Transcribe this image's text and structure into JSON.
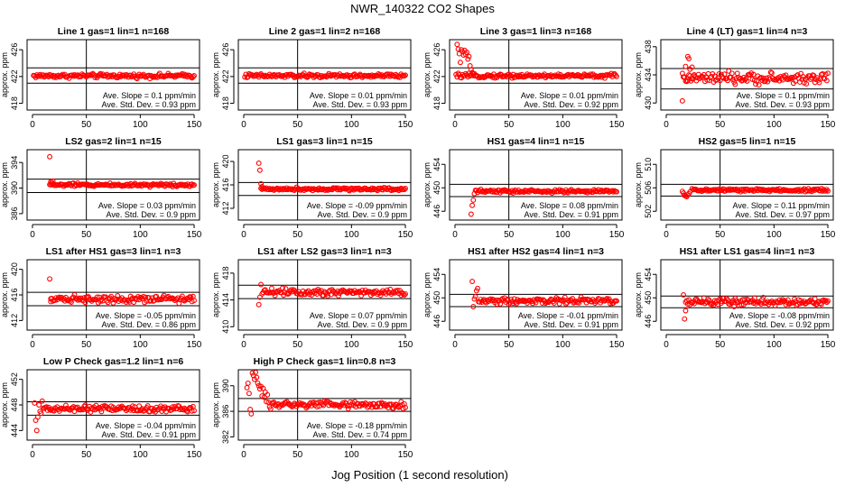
{
  "figure": {
    "title": "NWR_140322  CO2 Shapes",
    "xlabel": "Jog Position (1 second resolution)"
  },
  "chart_data": [
    {
      "type": "scatter",
      "title": "Line 1 gas=1 lin=1 n=168",
      "ylabel": "approx. ppm",
      "xlim": [
        -5,
        155
      ],
      "ylim": [
        417,
        427.5
      ],
      "xticks": [
        0,
        50,
        100,
        150
      ],
      "yticks": [
        418,
        422,
        426
      ],
      "vline": 50,
      "hlines": [
        423.3,
        421.0
      ],
      "baseline": 422.1,
      "noise": 0.22,
      "startX": 1,
      "spikes": [],
      "annotations": [
        "Ave. Slope = 0.1  ppm/min",
        "Ave. Std. Dev. = 0.93  ppm"
      ]
    },
    {
      "type": "scatter",
      "title": "Line 2 gas=1 lin=2 n=168",
      "ylabel": "approx. ppm",
      "xlim": [
        -5,
        155
      ],
      "ylim": [
        417,
        427.5
      ],
      "xticks": [
        0,
        50,
        100,
        150
      ],
      "yticks": [
        418,
        422,
        426
      ],
      "vline": 50,
      "hlines": [
        423.3,
        421.0
      ],
      "baseline": 422.1,
      "noise": 0.22,
      "startX": 1,
      "spikes": [],
      "annotations": [
        "Ave. Slope = 0.01  ppm/min",
        "Ave. Std. Dev. = 0.93  ppm"
      ]
    },
    {
      "type": "scatter",
      "title": "Line 3 gas=1 lin=3 n=168",
      "ylabel": "approx. ppm",
      "xlim": [
        -5,
        155
      ],
      "ylim": [
        417,
        427.5
      ],
      "xticks": [
        0,
        50,
        100,
        150
      ],
      "yticks": [
        418,
        422,
        426
      ],
      "vline": 50,
      "hlines": [
        423.3,
        421.0
      ],
      "baseline": 422.1,
      "noise": 0.22,
      "startX": 1,
      "spikes": [
        [
          2,
          426.8
        ],
        [
          3,
          426.1
        ],
        [
          4,
          425.4
        ],
        [
          5,
          424.1
        ],
        [
          6,
          426.0
        ],
        [
          7,
          425.7
        ],
        [
          8,
          425.2
        ],
        [
          9,
          425.9
        ],
        [
          10,
          425.3
        ],
        [
          11,
          425.6
        ],
        [
          12,
          424.6
        ],
        [
          13,
          425.0
        ],
        [
          14,
          423.6
        ],
        [
          15,
          423.0
        ],
        [
          16,
          422.6
        ],
        [
          17,
          422.4
        ]
      ],
      "annotations": [
        "Ave. Slope = 0.01  ppm/min",
        "Ave. Std. Dev. = 0.92  ppm"
      ]
    },
    {
      "type": "scatter",
      "title": "Line 4 (LT) gas=1 lin=4 n=3",
      "ylabel": "approx. ppm",
      "xlim": [
        -5,
        155
      ],
      "ylim": [
        429,
        439
      ],
      "xticks": [
        0,
        50,
        100,
        150
      ],
      "yticks": [
        430,
        434,
        438
      ],
      "vline": 50,
      "hlines": [
        434.9,
        432.0
      ],
      "baseline": 433.5,
      "noise": 0.55,
      "startX": 15,
      "spikes": [
        [
          15,
          430.3
        ],
        [
          16,
          433.7
        ],
        [
          18,
          435.2
        ],
        [
          20,
          436.6
        ],
        [
          21,
          436.3
        ],
        [
          22,
          434.8
        ],
        [
          24,
          435.1
        ],
        [
          26,
          434.0
        ]
      ],
      "annotations": [
        "Ave. Slope = 0.1  ppm/min",
        "Ave. Std. Dev. = 0.93  ppm"
      ]
    },
    {
      "type": "scatter",
      "title": "LS2 gas=2 lin=1 n=15",
      "ylabel": "approx. ppm",
      "xlim": [
        -5,
        155
      ],
      "ylim": [
        385,
        396
      ],
      "xticks": [
        0,
        50,
        100,
        150
      ],
      "yticks": [
        386,
        390,
        394
      ],
      "vline": 50,
      "hlines": [
        391.4,
        389.3
      ],
      "baseline": 390.5,
      "noise": 0.18,
      "startX": 16,
      "spikes": [
        [
          16,
          394.9
        ],
        [
          17,
          391.0
        ],
        [
          18,
          390.9
        ],
        [
          19,
          391.1
        ]
      ],
      "annotations": [
        "Ave. Slope = 0.03  ppm/min",
        "Ave. Std. Dev. = 0.9  ppm"
      ]
    },
    {
      "type": "scatter",
      "title": "LS1 gas=3 lin=1 n=15",
      "ylabel": "approx. ppm",
      "xlim": [
        -5,
        155
      ],
      "ylim": [
        410,
        422
      ],
      "xticks": [
        0,
        50,
        100,
        150
      ],
      "yticks": [
        412,
        416,
        420
      ],
      "vline": 50,
      "hlines": [
        416.4,
        414.2
      ],
      "baseline": 415.3,
      "noise": 0.18,
      "startX": 16,
      "spikes": [
        [
          14,
          419.7
        ],
        [
          15,
          418.5
        ],
        [
          16,
          416.2
        ],
        [
          17,
          415.7
        ]
      ],
      "annotations": [
        "Ave. Slope = -0.09  ppm/min",
        "Ave. Std. Dev. = 0.9  ppm"
      ]
    },
    {
      "type": "scatter",
      "title": "HS1 gas=4 lin=1 n=15",
      "ylabel": "approx. ppm",
      "xlim": [
        -5,
        155
      ],
      "ylim": [
        444.5,
        456.5
      ],
      "xticks": [
        0,
        50,
        100,
        150
      ],
      "yticks": [
        446,
        450,
        454
      ],
      "vline": 50,
      "hlines": [
        450.6,
        448.5
      ],
      "baseline": 449.4,
      "noise": 0.2,
      "startX": 19,
      "spikes": [
        [
          15,
          445.5
        ],
        [
          16,
          447.0
        ],
        [
          17,
          447.9
        ],
        [
          18,
          449.0
        ]
      ],
      "annotations": [
        "Ave. Slope = 0.08  ppm/min",
        "Ave. Std. Dev. = 0.91  ppm"
      ]
    },
    {
      "type": "scatter",
      "title": "HS2 gas=5 lin=1 n=15",
      "ylabel": "approx. ppm",
      "xlim": [
        -5,
        155
      ],
      "ylim": [
        500.5,
        512.5
      ],
      "xticks": [
        0,
        50,
        100,
        150
      ],
      "yticks": [
        502,
        506,
        510
      ],
      "vline": 50,
      "hlines": [
        506.6,
        504.6
      ],
      "baseline": 505.6,
      "noise": 0.2,
      "startX": 24,
      "spikes": [
        [
          15,
          505.4
        ],
        [
          16,
          505.1
        ],
        [
          17,
          504.7
        ],
        [
          18,
          504.6
        ],
        [
          19,
          504.5
        ],
        [
          20,
          504.8
        ],
        [
          21,
          505.0
        ],
        [
          22,
          505.3
        ]
      ],
      "annotations": [
        "Ave. Slope = 0.11  ppm/min",
        "Ave. Std. Dev. = 0.97  ppm"
      ]
    },
    {
      "type": "scatter",
      "title": "LS1 after HS1 gas=3 lin=1 n=3",
      "ylabel": "approx. ppm",
      "xlim": [
        -5,
        155
      ],
      "ylim": [
        410.5,
        421.5
      ],
      "xticks": [
        0,
        50,
        100,
        150
      ],
      "yticks": [
        412,
        416,
        420
      ],
      "vline": 50,
      "hlines": [
        416.4,
        414.3
      ],
      "baseline": 415.4,
      "noise": 0.4,
      "startX": 17,
      "spikes": [
        [
          16,
          418.5
        ],
        [
          17,
          415.4
        ]
      ],
      "annotations": [
        "Ave. Slope = -0.05  ppm/min",
        "Ave. Std. Dev. = 0.86  ppm"
      ]
    },
    {
      "type": "scatter",
      "title": "LS1 after LS2 gas=3 lin=1 n=3",
      "ylabel": "approx. ppm",
      "xlim": [
        -5,
        155
      ],
      "ylim": [
        409.5,
        420
      ],
      "xticks": [
        0,
        50,
        100,
        150
      ],
      "yticks": [
        410,
        414,
        418
      ],
      "vline": 50,
      "hlines": [
        416.2,
        414.2
      ],
      "baseline": 415.2,
      "noise": 0.4,
      "startX": 17,
      "spikes": [
        [
          14,
          413.3
        ],
        [
          15,
          414.4
        ],
        [
          16,
          416.3
        ]
      ],
      "annotations": [
        "Ave. Slope = 0.07  ppm/min",
        "Ave. Std. Dev. = 0.9  ppm"
      ]
    },
    {
      "type": "scatter",
      "title": "HS1 after HS2 gas=4 lin=1 n=3",
      "ylabel": "approx. ppm",
      "xlim": [
        -5,
        155
      ],
      "ylim": [
        444.5,
        456.5
      ],
      "xticks": [
        0,
        50,
        100,
        150
      ],
      "yticks": [
        446,
        450,
        454
      ],
      "vline": 50,
      "hlines": [
        450.6,
        448.5
      ],
      "baseline": 449.5,
      "noise": 0.4,
      "startX": 22,
      "spikes": [
        [
          16,
          452.8
        ],
        [
          17,
          448.5
        ],
        [
          18,
          449.8
        ],
        [
          19,
          450.2
        ],
        [
          20,
          451.2
        ],
        [
          21,
          451.6
        ]
      ],
      "annotations": [
        "Ave. Slope = -0.01  ppm/min",
        "Ave. Std. Dev. = 0.91  ppm"
      ]
    },
    {
      "type": "scatter",
      "title": "HS1 after LS1 gas=4 lin=1 n=3",
      "ylabel": "approx. ppm",
      "xlim": [
        -5,
        155
      ],
      "ylim": [
        444.5,
        456.5
      ],
      "xticks": [
        0,
        50,
        100,
        150
      ],
      "yticks": [
        446,
        450,
        454
      ],
      "vline": 50,
      "hlines": [
        450.3,
        448.3
      ],
      "baseline": 449.3,
      "noise": 0.45,
      "startX": 18,
      "spikes": [
        [
          16,
          450.5
        ],
        [
          17,
          446.4
        ],
        [
          18,
          447.8
        ]
      ],
      "annotations": [
        "Ave. Slope = -0.08  ppm/min",
        "Ave. Std. Dev. = 0.92  ppm"
      ]
    },
    {
      "type": "scatter",
      "title": "Low P Check gas=1.2 lin=1 n=6",
      "ylabel": "approx. ppm",
      "xlim": [
        -5,
        155
      ],
      "ylim": [
        442.5,
        453.5
      ],
      "xticks": [
        0,
        50,
        100,
        150
      ],
      "yticks": [
        444,
        448,
        452
      ],
      "vline": 50,
      "hlines": [
        448.5,
        446.4
      ],
      "baseline": 447.4,
      "noise": 0.35,
      "startX": 10,
      "spikes": [
        [
          2,
          448.3
        ],
        [
          3,
          445.6
        ],
        [
          4,
          444.0
        ],
        [
          5,
          446.1
        ],
        [
          6,
          448.0
        ],
        [
          7,
          447.0
        ],
        [
          8,
          446.7
        ],
        [
          9,
          448.6
        ]
      ],
      "annotations": [
        "Ave. Slope = -0.04  ppm/min",
        "Ave. Std. Dev. = 0.91  ppm"
      ]
    },
    {
      "type": "scatter",
      "title": "High P Check gas=1 lin=0.8 n=3",
      "ylabel": "approx. ppm",
      "xlim": [
        -5,
        155
      ],
      "ylim": [
        381.5,
        392.5
      ],
      "xticks": [
        0,
        50,
        100,
        150
      ],
      "yticks": [
        382,
        386,
        390
      ],
      "vline": 50,
      "hlines": [
        388.0,
        386.0
      ],
      "baseline": 387.0,
      "noise": 0.4,
      "startX": 24,
      "spikes": [
        [
          3,
          389.7
        ],
        [
          4,
          390.4
        ],
        [
          5,
          388.8
        ],
        [
          6,
          386.3
        ],
        [
          7,
          385.6
        ],
        [
          8,
          392.0
        ],
        [
          9,
          391.6
        ],
        [
          10,
          391.0
        ],
        [
          11,
          392.1
        ],
        [
          12,
          391.3
        ],
        [
          13,
          390.4
        ],
        [
          14,
          390.0
        ],
        [
          15,
          389.5
        ],
        [
          16,
          389.9
        ],
        [
          17,
          388.4
        ],
        [
          18,
          389.6
        ],
        [
          19,
          388.2
        ],
        [
          20,
          389.0
        ],
        [
          21,
          387.5
        ],
        [
          22,
          388.6
        ],
        [
          23,
          387.4
        ]
      ],
      "annotations": [
        "Ave. Slope = -0.18  ppm/min",
        "Ave. Std. Dev. = 0.74  ppm"
      ]
    }
  ]
}
